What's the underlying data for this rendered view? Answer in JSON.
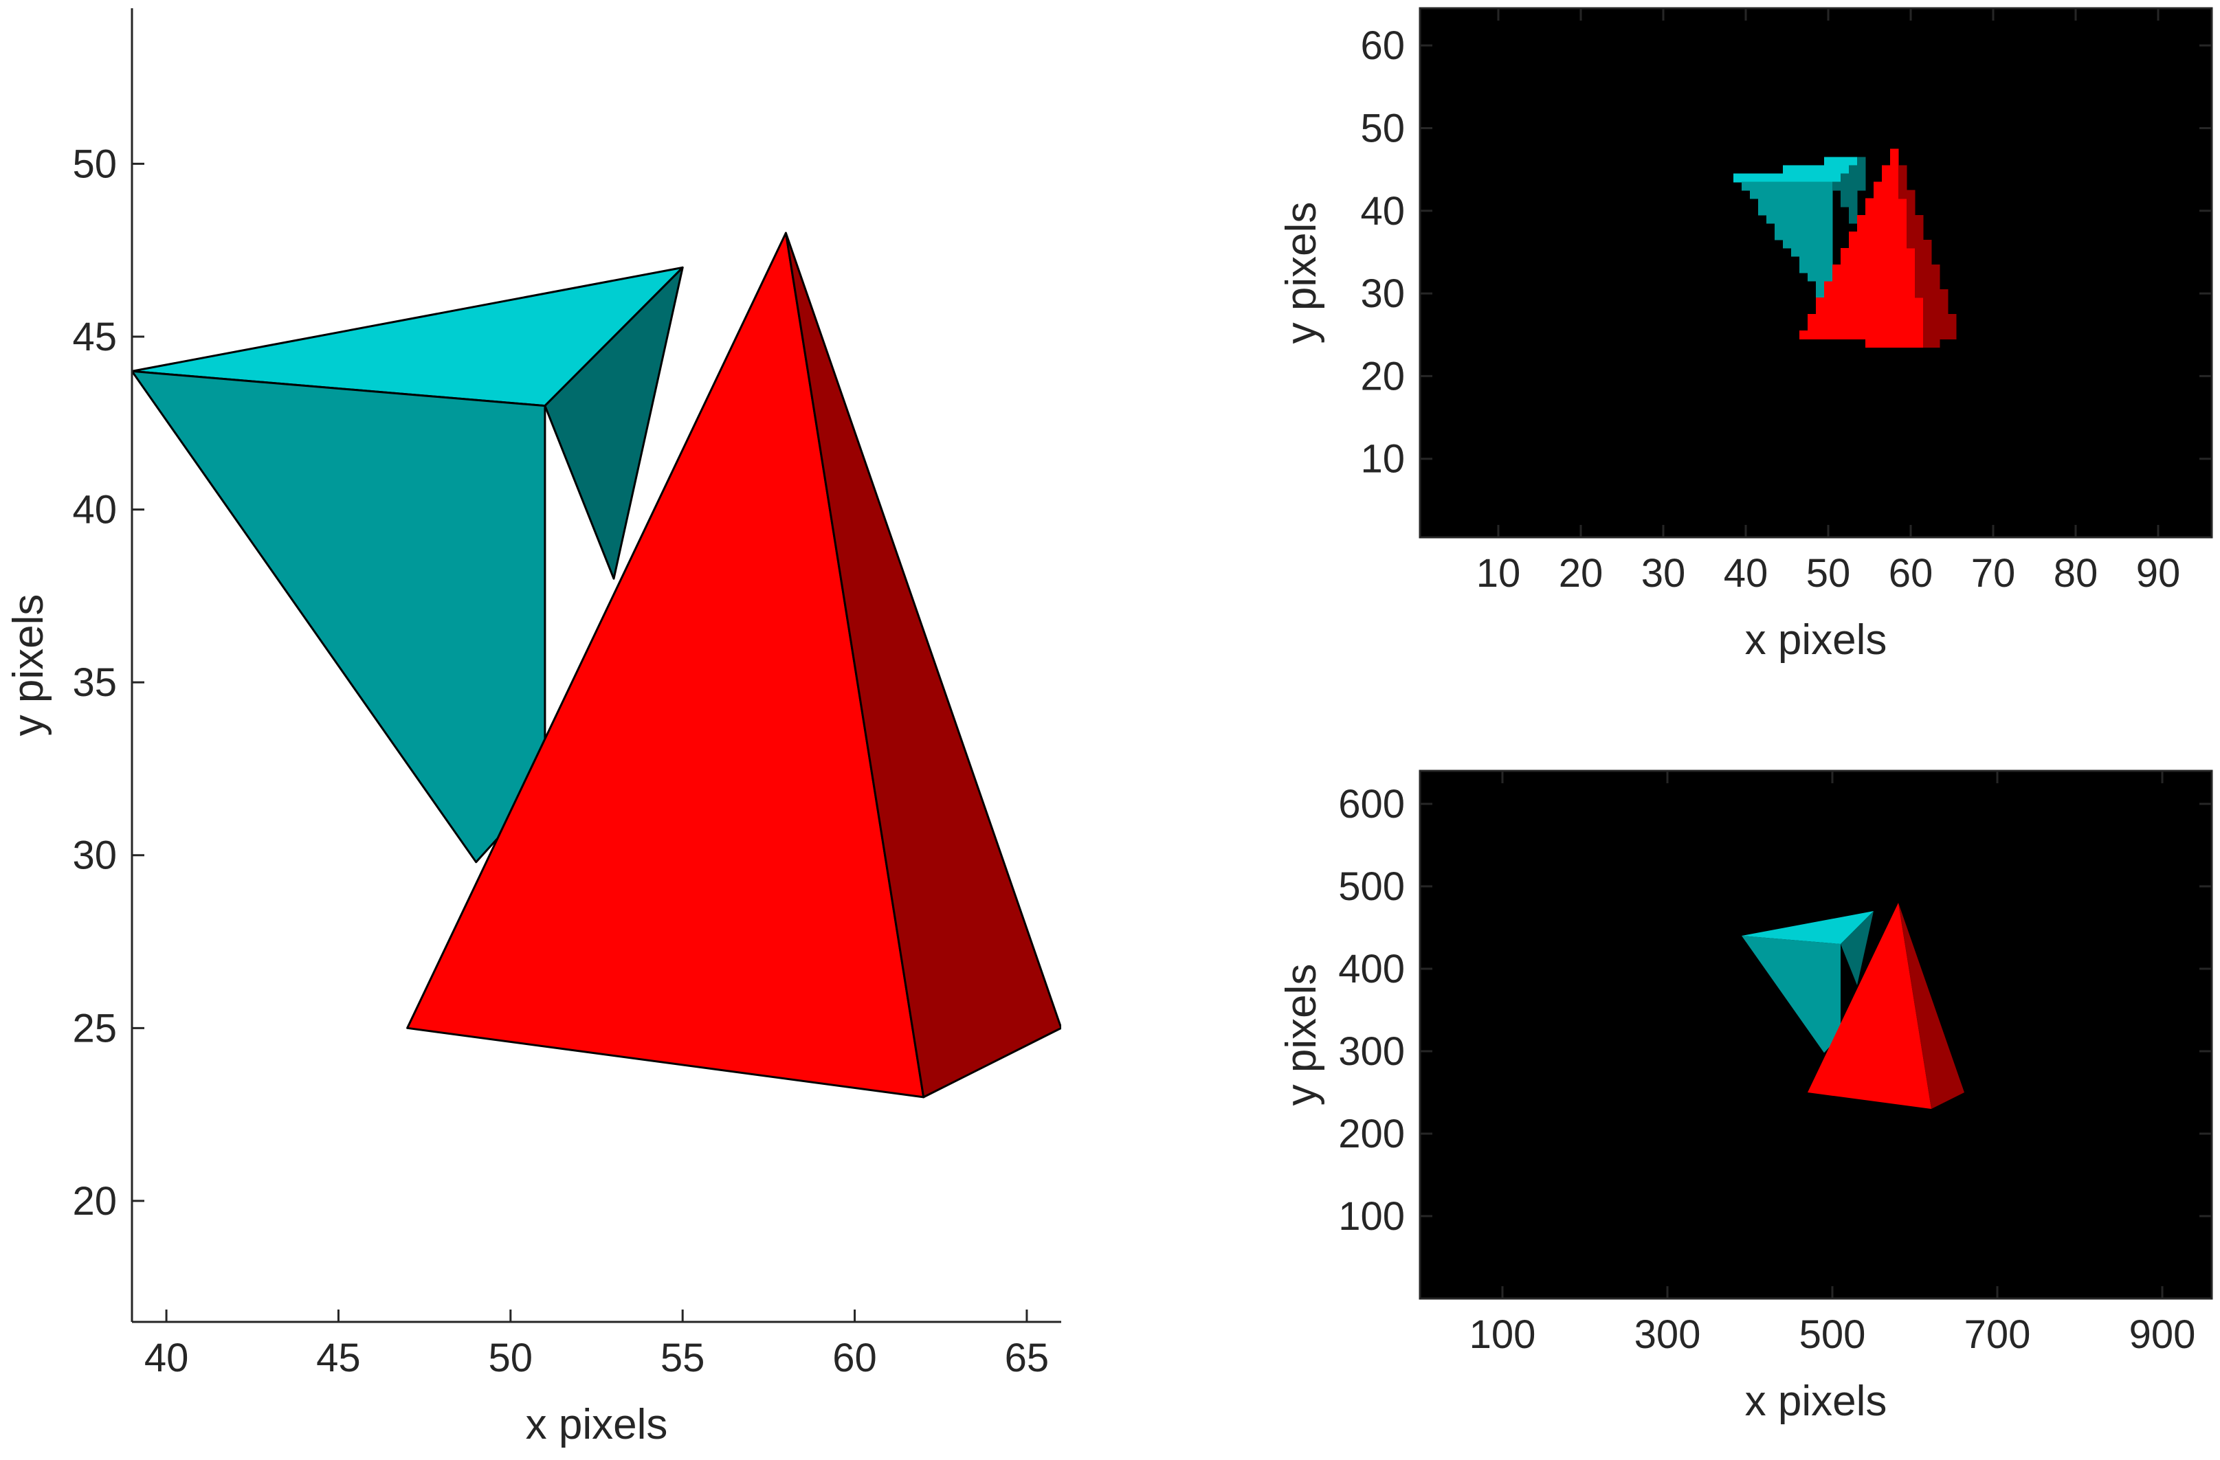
{
  "colors": {
    "cyan_top": "#00CED1",
    "cyan_front": "#009999",
    "cyan_side": "#006B6B",
    "red_front": "#FF0000",
    "red_side": "#990000",
    "image_background": "#000000",
    "axis": "#262626"
  },
  "chart_data": [
    {
      "id": "main",
      "type": "patch",
      "xlabel": "x pixels",
      "ylabel": "y pixels",
      "xlim": [
        39,
        66
      ],
      "ylim": [
        16.5,
        54.5
      ],
      "xticks": [
        40,
        45,
        50,
        55,
        60,
        65
      ],
      "yticks": [
        20,
        25,
        30,
        35,
        40,
        45,
        50
      ],
      "xtick_labels": [
        "40",
        "45",
        "50",
        "55",
        "60",
        "65"
      ],
      "ytick_labels": [
        "20",
        "25",
        "30",
        "35",
        "40",
        "45",
        "50"
      ],
      "shapes": [
        {
          "name": "cyan-pyramid",
          "faces": [
            {
              "name": "cyan-top-face",
              "color": "cyan_top",
              "points": [
                [
                  39,
                  44
                ],
                [
                  55,
                  47
                ],
                [
                  51,
                  43
                ]
              ]
            },
            {
              "name": "cyan-front-face",
              "color": "cyan_front",
              "points": [
                [
                  39,
                  44
                ],
                [
                  51,
                  43
                ],
                [
                  51,
                  32
                ],
                [
                  49,
                  29.8
                ]
              ]
            },
            {
              "name": "cyan-side-face",
              "color": "cyan_side",
              "points": [
                [
                  51,
                  43
                ],
                [
                  55,
                  47
                ],
                [
                  53,
                  38
                ]
              ]
            }
          ]
        },
        {
          "name": "red-pyramid",
          "faces": [
            {
              "name": "red-front-face",
              "color": "red_front",
              "points": [
                [
                  58,
                  48
                ],
                [
                  47,
                  25
                ],
                [
                  62,
                  23
                ]
              ]
            },
            {
              "name": "red-side-face",
              "color": "red_side",
              "points": [
                [
                  58,
                  48
                ],
                [
                  62,
                  23
                ],
                [
                  66,
                  25
                ]
              ]
            }
          ]
        }
      ]
    },
    {
      "id": "top-right",
      "type": "image",
      "xlabel": "x pixels",
      "ylabel": "y pixels",
      "xlim": [
        0.5,
        96.5
      ],
      "ylim": [
        0.5,
        64.5
      ],
      "xticks": [
        10,
        20,
        30,
        40,
        50,
        60,
        70,
        80,
        90
      ],
      "yticks": [
        10,
        20,
        30,
        40,
        50,
        60
      ],
      "xtick_labels": [
        "10",
        "20",
        "30",
        "40",
        "50",
        "60",
        "70",
        "80",
        "90"
      ],
      "ytick_labels": [
        "10",
        "20",
        "30",
        "40",
        "50",
        "60"
      ],
      "pixelated": true
    },
    {
      "id": "bottom-right",
      "type": "image",
      "xlabel": "x pixels",
      "ylabel": "y pixels",
      "xlim": [
        0,
        960
      ],
      "ylim": [
        0,
        640
      ],
      "xticks": [
        100,
        300,
        500,
        700,
        900
      ],
      "yticks": [
        100,
        200,
        300,
        400,
        500,
        600
      ],
      "xtick_labels": [
        "100",
        "300",
        "500",
        "700",
        "900"
      ],
      "ytick_labels": [
        "100",
        "200",
        "300",
        "400",
        "500",
        "600"
      ],
      "pixelated": false
    }
  ]
}
